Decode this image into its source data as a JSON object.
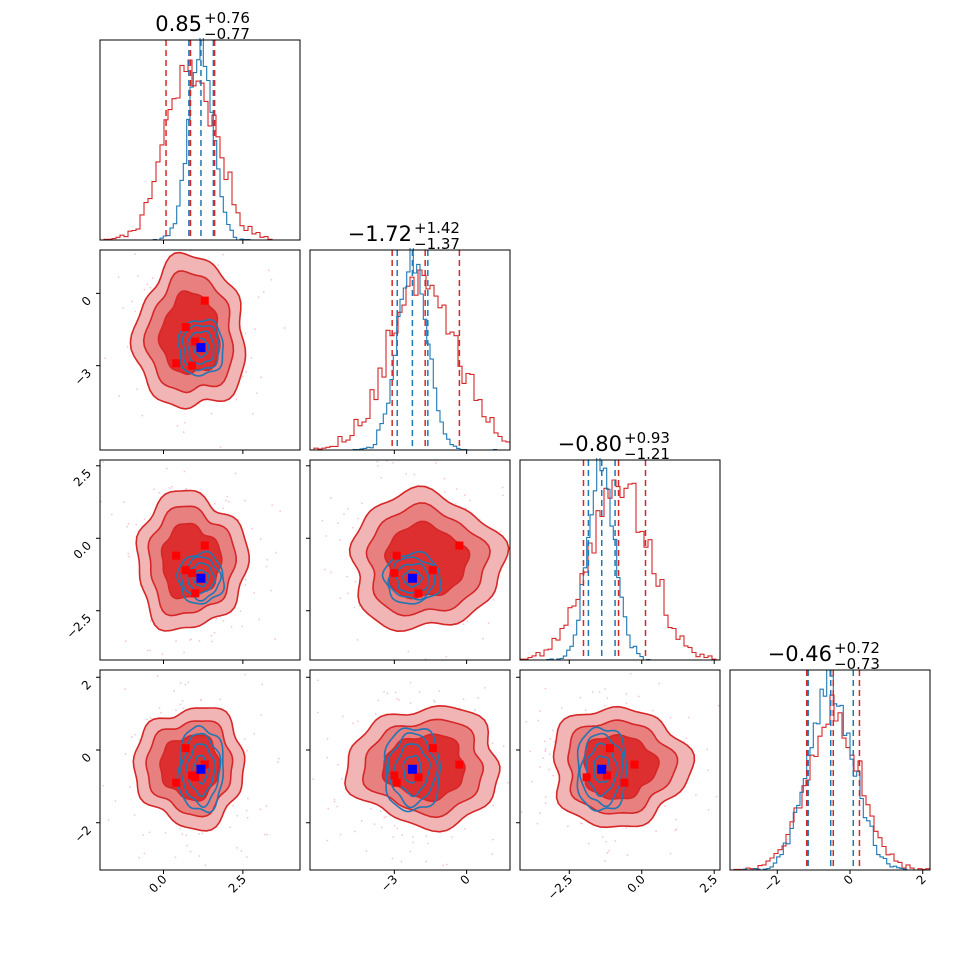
{
  "colors": {
    "red": "#d62728",
    "blue": "#1f77b4",
    "red_fill_light": "#f2b5b5",
    "red_fill_mid": "#e88080",
    "red_fill_dark": "#dd2f2f",
    "marker_red": "#ff0000",
    "marker_blue": "#0000ff"
  },
  "chart_data": {
    "type": "corner",
    "n_params": 4,
    "axis_ranges": [
      [
        -2.0,
        4.3
      ],
      [
        -6.5,
        1.8
      ],
      [
        -4.2,
        2.7
      ],
      [
        -3.3,
        2.2
      ]
    ],
    "ticks": [
      {
        "values": [
          0.0,
          2.5
        ],
        "labels": [
          "0.0",
          "2.5"
        ]
      },
      {
        "values": [
          -3,
          0
        ],
        "labels": [
          "−3",
          "0"
        ]
      },
      {
        "values": [
          -2.5,
          0.0,
          2.5
        ],
        "labels": [
          "−2.5",
          "0.0",
          "2.5"
        ]
      },
      {
        "values": [
          -2,
          0,
          2
        ],
        "labels": [
          "−2",
          "0",
          "2"
        ]
      }
    ],
    "titles": [
      {
        "value": "0.85",
        "plus": "+0.76",
        "minus": "−0.77"
      },
      {
        "value": "−1.72",
        "plus": "+1.42",
        "minus": "−1.37"
      },
      {
        "value": "−0.80",
        "plus": "+0.93",
        "minus": "−1.21"
      },
      {
        "value": "−0.46",
        "plus": "+0.72",
        "minus": "−0.73"
      }
    ],
    "series": [
      {
        "name": "red",
        "means": [
          0.85,
          -1.72,
          -0.8,
          -0.46
        ],
        "sigmas": [
          0.77,
          1.4,
          1.05,
          0.73
        ],
        "quantiles": [
          [
            0.08,
            0.85,
            1.61
          ],
          [
            -3.09,
            -1.72,
            -0.3
          ],
          [
            -2.01,
            -0.8,
            0.13
          ],
          [
            -1.19,
            -0.46,
            0.26
          ]
        ]
      },
      {
        "name": "blue",
        "means": [
          1.18,
          -2.25,
          -1.38,
          -0.53
        ],
        "sigmas": [
          0.38,
          0.62,
          0.46,
          0.62
        ],
        "quantiles": [
          [
            0.8,
            1.18,
            1.57
          ],
          [
            -2.88,
            -2.25,
            -1.61
          ],
          [
            -1.84,
            -1.38,
            -0.92
          ],
          [
            -1.15,
            -0.53,
            0.09
          ]
        ]
      }
    ],
    "markers_red": [
      [
        1.3,
        -0.3,
        -0.25,
        -0.4
      ],
      [
        0.7,
        -1.4,
        -1.1,
        0.05
      ],
      [
        1.0,
        -2.0,
        -1.9,
        -0.75
      ],
      [
        0.4,
        -2.9,
        -0.6,
        -0.9
      ],
      [
        0.9,
        -3.0,
        -1.2,
        -0.7
      ]
    ],
    "marker_blue": [
      1.18,
      -2.25,
      -1.38,
      -0.53
    ]
  }
}
